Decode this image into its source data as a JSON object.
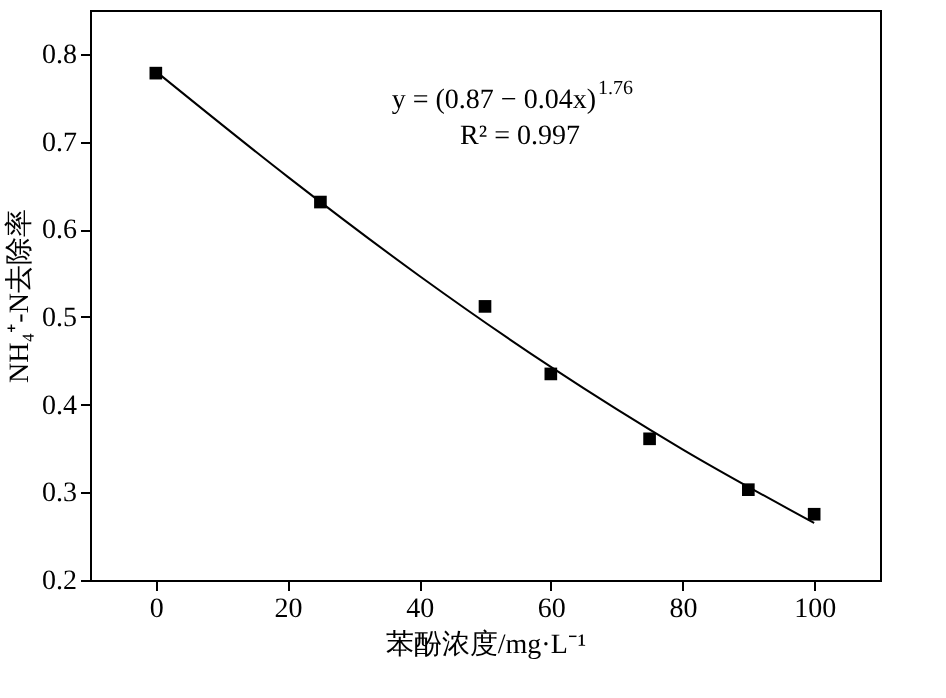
{
  "chart_data": {
    "type": "scatter",
    "xlabel": "苯酚浓度/mg·L⁻¹",
    "ylabel": "NH₄⁺-N去除率",
    "annotations": [
      "y = (0.87 −  0.04x)$^{1.76}$",
      "R² = 0.997"
    ],
    "xlim": [
      -10,
      110
    ],
    "xticks": [
      0,
      20,
      40,
      60,
      80,
      100
    ],
    "ylim": [
      0.2,
      0.85
    ],
    "yticks": [
      0.2,
      0.3,
      0.4,
      0.5,
      0.6,
      0.7,
      0.8
    ],
    "grid": false,
    "series": [
      {
        "marker": "square",
        "color": "#000000",
        "x": [
          0,
          25,
          50,
          60,
          75,
          90,
          100
        ],
        "values": [
          0.778,
          0.631,
          0.512,
          0.435,
          0.361,
          0.303,
          0.275
        ]
      },
      {
        "type": "line",
        "line_style": "solid",
        "marker": "none",
        "color": "#000000",
        "x": [
          0,
          20,
          40,
          60,
          80,
          100
        ],
        "values": [
          0.78,
          0.66,
          0.547,
          0.443,
          0.349,
          0.265
        ]
      }
    ]
  }
}
